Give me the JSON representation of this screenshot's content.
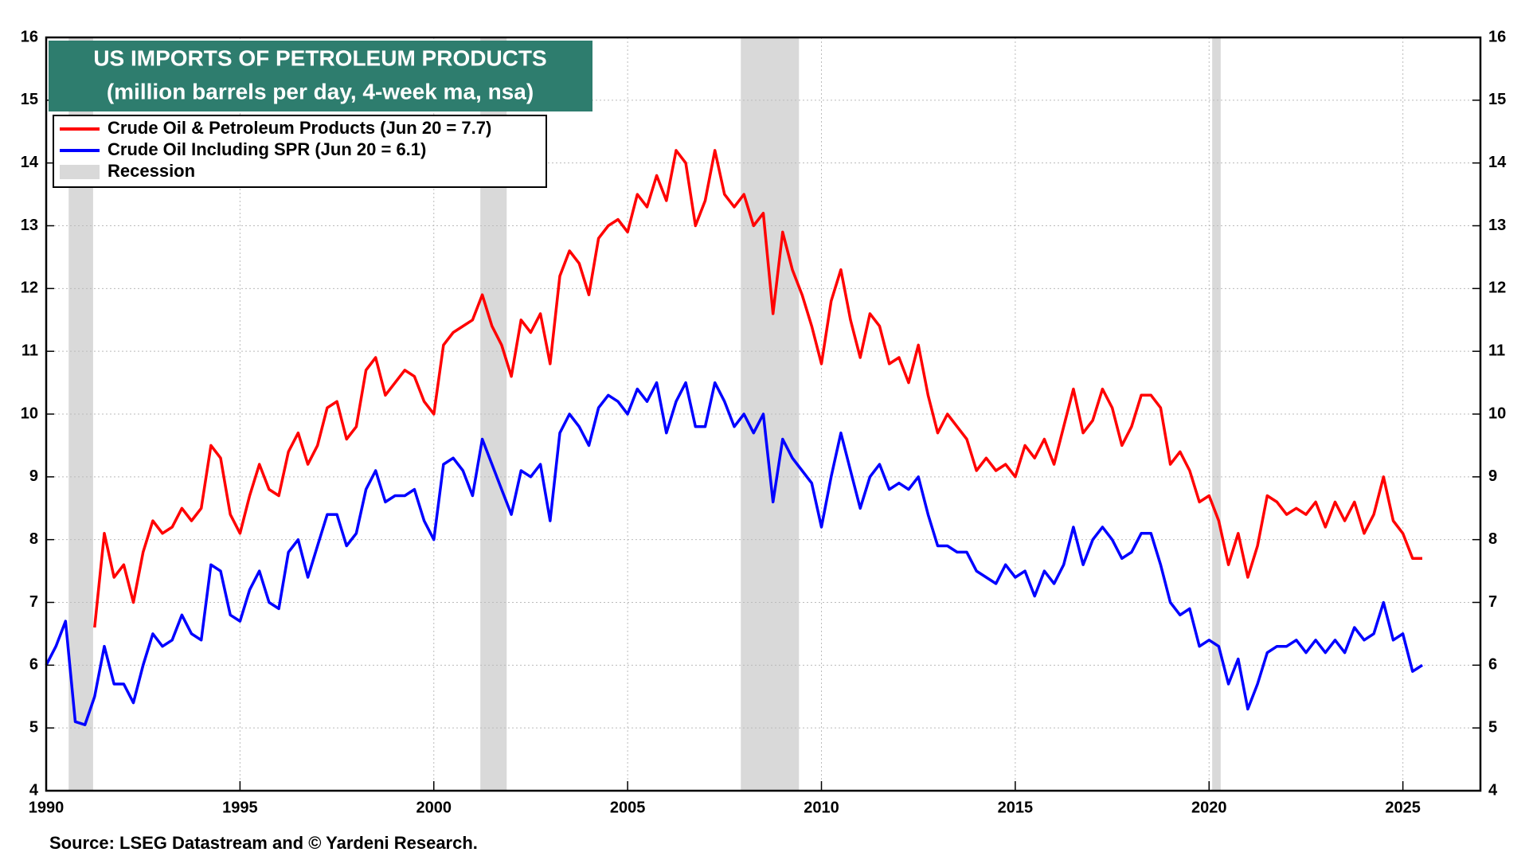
{
  "chart_data": {
    "type": "line",
    "title": "US IMPORTS OF PETROLEUM PRODUCTS",
    "subtitle": "(million barrels per day, 4-week ma, nsa)",
    "source": "Source: LSEG Datastream and © Yardeni Research.",
    "recession_label": "Recession",
    "recession_color": "#d9d9d9",
    "recessions": [
      [
        1990.58,
        1991.21
      ],
      [
        2001.2,
        2001.88
      ],
      [
        2007.92,
        2009.42
      ],
      [
        2020.08,
        2020.3
      ]
    ],
    "xlim": [
      1990,
      2027
    ],
    "xticks": [
      1990,
      1995,
      2000,
      2005,
      2010,
      2015,
      2020,
      2025
    ],
    "ylim": [
      4,
      16
    ],
    "yticks": [
      4,
      5,
      6,
      7,
      8,
      9,
      10,
      11,
      12,
      13,
      14,
      15,
      16
    ],
    "grid": true,
    "x": [
      1990,
      1990.25,
      1990.5,
      1990.75,
      1991,
      1991.25,
      1991.5,
      1991.75,
      1992,
      1992.25,
      1992.5,
      1992.75,
      1993,
      1993.25,
      1993.5,
      1993.75,
      1994,
      1994.25,
      1994.5,
      1994.75,
      1995,
      1995.25,
      1995.5,
      1995.75,
      1996,
      1996.25,
      1996.5,
      1996.75,
      1997,
      1997.25,
      1997.5,
      1997.75,
      1998,
      1998.25,
      1998.5,
      1998.75,
      1999,
      1999.25,
      1999.5,
      1999.75,
      2000,
      2000.25,
      2000.5,
      2000.75,
      2001,
      2001.25,
      2001.5,
      2001.75,
      2002,
      2002.25,
      2002.5,
      2002.75,
      2003,
      2003.25,
      2003.5,
      2003.75,
      2004,
      2004.25,
      2004.5,
      2004.75,
      2005,
      2005.25,
      2005.5,
      2005.75,
      2006,
      2006.25,
      2006.5,
      2006.75,
      2007,
      2007.25,
      2007.5,
      2007.75,
      2008,
      2008.25,
      2008.5,
      2008.75,
      2009,
      2009.25,
      2009.5,
      2009.75,
      2010,
      2010.25,
      2010.5,
      2010.75,
      2011,
      2011.25,
      2011.5,
      2011.75,
      2012,
      2012.25,
      2012.5,
      2012.75,
      2013,
      2013.25,
      2013.5,
      2013.75,
      2014,
      2014.25,
      2014.5,
      2014.75,
      2015,
      2015.25,
      2015.5,
      2015.75,
      2016,
      2016.25,
      2016.5,
      2016.75,
      2017,
      2017.25,
      2017.5,
      2017.75,
      2018,
      2018.25,
      2018.5,
      2018.75,
      2019,
      2019.25,
      2019.5,
      2019.75,
      2020,
      2020.25,
      2020.5,
      2020.75,
      2021,
      2021.25,
      2021.5,
      2021.75,
      2022,
      2022.25,
      2022.5,
      2022.75,
      2023,
      2023.25,
      2023.5,
      2023.75,
      2024,
      2024.25,
      2024.5,
      2024.75,
      2025,
      2025.25,
      2025.5
    ],
    "series": [
      {
        "name": "Crude Oil & Petroleum Products (Jun 20 = 7.7)",
        "color": "#ff0000",
        "values": [
          null,
          null,
          null,
          null,
          null,
          6.6,
          8.1,
          7.4,
          7.6,
          7.0,
          7.8,
          8.3,
          8.1,
          8.2,
          8.5,
          8.3,
          8.5,
          9.5,
          9.3,
          8.4,
          8.1,
          8.7,
          9.2,
          8.8,
          8.7,
          9.4,
          9.7,
          9.2,
          9.5,
          10.1,
          10.2,
          9.6,
          9.8,
          10.7,
          10.9,
          10.3,
          10.5,
          10.7,
          10.6,
          10.2,
          10.0,
          11.1,
          11.3,
          11.4,
          11.5,
          11.9,
          11.4,
          11.1,
          10.6,
          11.5,
          11.3,
          11.6,
          10.8,
          12.2,
          12.6,
          12.4,
          11.9,
          12.8,
          13.0,
          13.1,
          12.9,
          13.5,
          13.3,
          13.8,
          13.4,
          14.2,
          14.0,
          13.0,
          13.4,
          14.2,
          13.5,
          13.3,
          13.5,
          13.0,
          13.2,
          11.6,
          12.9,
          12.3,
          11.9,
          11.4,
          10.8,
          11.8,
          12.3,
          11.5,
          10.9,
          11.6,
          11.4,
          10.8,
          10.9,
          10.5,
          11.1,
          10.3,
          9.7,
          10.0,
          9.8,
          9.6,
          9.1,
          9.3,
          9.1,
          9.2,
          9.0,
          9.5,
          9.3,
          9.6,
          9.2,
          9.8,
          10.4,
          9.7,
          9.9,
          10.4,
          10.1,
          9.5,
          9.8,
          10.3,
          10.3,
          10.1,
          9.2,
          9.4,
          9.1,
          8.6,
          8.7,
          8.3,
          7.6,
          8.1,
          7.4,
          7.9,
          8.7,
          8.6,
          8.4,
          8.5,
          8.4,
          8.6,
          8.2,
          8.6,
          8.3,
          8.6,
          8.1,
          8.4,
          9.0,
          8.3,
          8.1,
          7.7,
          7.7
        ]
      },
      {
        "name": "Crude Oil Including SPR (Jun 20 = 6.1)",
        "color": "#0000ff",
        "values": [
          6.0,
          6.3,
          6.7,
          5.1,
          5.05,
          5.5,
          6.3,
          5.7,
          5.7,
          5.4,
          6.0,
          6.5,
          6.3,
          6.4,
          6.8,
          6.5,
          6.4,
          7.6,
          7.5,
          6.8,
          6.7,
          7.2,
          7.5,
          7.0,
          6.9,
          7.8,
          8.0,
          7.4,
          7.9,
          8.4,
          8.4,
          7.9,
          8.1,
          8.8,
          9.1,
          8.6,
          8.7,
          8.7,
          8.8,
          8.3,
          8.0,
          9.2,
          9.3,
          9.1,
          8.7,
          9.6,
          9.2,
          8.8,
          8.4,
          9.1,
          9.0,
          9.2,
          8.3,
          9.7,
          10.0,
          9.8,
          9.5,
          10.1,
          10.3,
          10.2,
          10.0,
          10.4,
          10.2,
          10.5,
          9.7,
          10.2,
          10.5,
          9.8,
          9.8,
          10.5,
          10.2,
          9.8,
          10.0,
          9.7,
          10.0,
          8.6,
          9.6,
          9.3,
          9.1,
          8.9,
          8.2,
          9.0,
          9.7,
          9.1,
          8.5,
          9.0,
          9.2,
          8.8,
          8.9,
          8.8,
          9.0,
          8.4,
          7.9,
          7.9,
          7.8,
          7.8,
          7.5,
          7.4,
          7.3,
          7.6,
          7.4,
          7.5,
          7.1,
          7.5,
          7.3,
          7.6,
          8.2,
          7.6,
          8.0,
          8.2,
          8.0,
          7.7,
          7.8,
          8.1,
          8.1,
          7.6,
          7.0,
          6.8,
          6.9,
          6.3,
          6.4,
          6.3,
          5.7,
          6.1,
          5.3,
          5.7,
          6.2,
          6.3,
          6.3,
          6.4,
          6.2,
          6.4,
          6.2,
          6.4,
          6.2,
          6.6,
          6.4,
          6.5,
          7.0,
          6.4,
          6.5,
          5.9,
          6.0
        ]
      }
    ]
  }
}
